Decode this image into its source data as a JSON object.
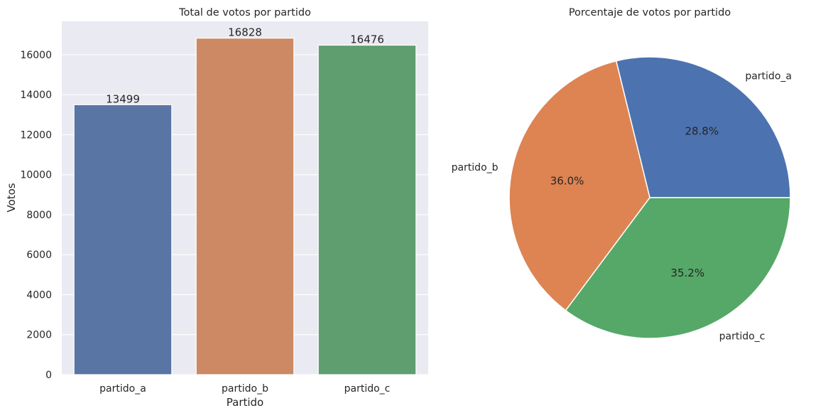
{
  "chart_data": [
    {
      "type": "bar",
      "title": "Total de votos por partido",
      "xlabel": "Partido",
      "ylabel": "Votos",
      "categories": [
        "partido_a",
        "partido_b",
        "partido_c"
      ],
      "values": [
        13499,
        16828,
        16476
      ],
      "data_labels": [
        "13499",
        "16828",
        "16476"
      ],
      "colors": [
        "#5875a4",
        "#cc8963",
        "#5f9e6e"
      ],
      "ylim": [
        0,
        17669
      ],
      "yticks": [
        0,
        2000,
        4000,
        6000,
        8000,
        10000,
        12000,
        14000,
        16000
      ],
      "grid": true,
      "background": "#eaeaf2"
    },
    {
      "type": "pie",
      "title": "Porcentaje de votos por partido",
      "labels": [
        "partido_a",
        "partido_b",
        "partido_c"
      ],
      "values": [
        13499,
        16828,
        16476
      ],
      "percent_labels": [
        "28.8%",
        "36.0%",
        "35.2%"
      ],
      "colors": [
        "#4c72b0",
        "#dd8452",
        "#55a868"
      ],
      "start_angle": 0,
      "direction": "counterclockwise"
    }
  ]
}
